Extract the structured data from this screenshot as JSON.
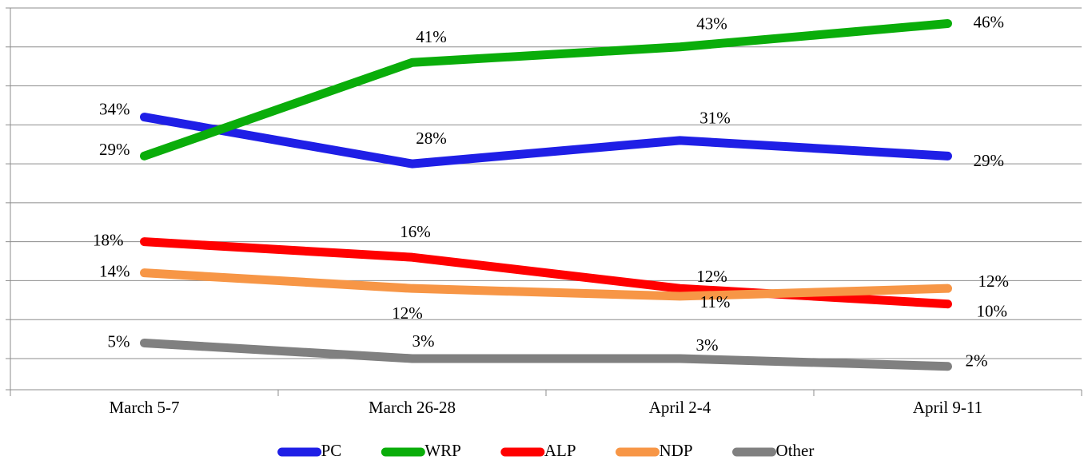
{
  "chart_data": {
    "type": "line",
    "categories": [
      "March 5-7",
      "March 26-28",
      "April 2-4",
      "April 9-11"
    ],
    "ylim": [
      -1,
      48
    ],
    "yticks": [
      3,
      8,
      13,
      18,
      23,
      28,
      33,
      38,
      43,
      48
    ],
    "grid": true,
    "legend": "bottom",
    "series": [
      {
        "name": "PC",
        "color": "#1f1fe6",
        "values": [
          34,
          28,
          31,
          29
        ],
        "value_labels": [
          "34%",
          "28%",
          "31%",
          "29%"
        ]
      },
      {
        "name": "WRP",
        "color": "#0aad0a",
        "values": [
          29,
          41,
          43,
          46
        ],
        "value_labels": [
          "29%",
          "41%",
          "43%",
          "46%"
        ]
      },
      {
        "name": "ALP",
        "color": "#ff0000",
        "values": [
          18,
          16,
          12,
          10
        ],
        "value_labels": [
          "18%",
          "16%",
          "12%",
          "10%"
        ]
      },
      {
        "name": "NDP",
        "color": "#f79646",
        "values": [
          14,
          12,
          11,
          12
        ],
        "value_labels": [
          "14%",
          "12%",
          "11%",
          "12%"
        ]
      },
      {
        "name": "Other",
        "color": "#808080",
        "values": [
          5,
          3,
          3,
          2
        ],
        "value_labels": [
          "5%",
          "3%",
          "3%",
          "2%"
        ]
      }
    ]
  }
}
